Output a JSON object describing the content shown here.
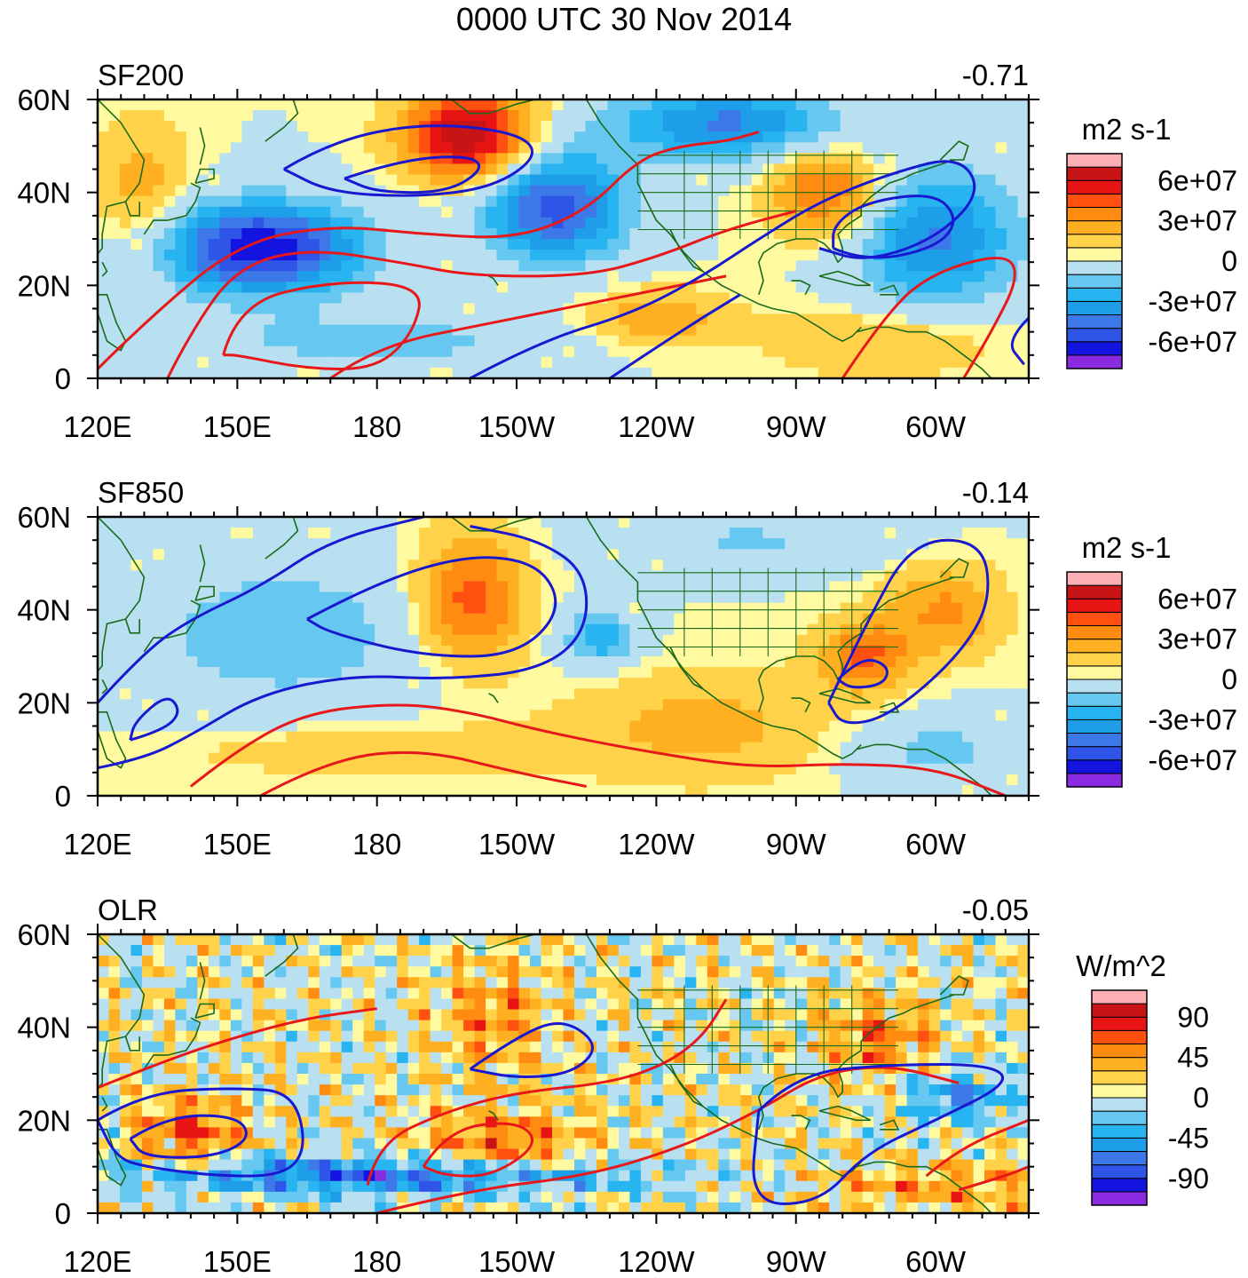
{
  "title": "0000 UTC 30 Nov 2014",
  "chart_data": [
    {
      "type": "heatmap",
      "panel": "SF200",
      "label": "SF200",
      "corr": "-0.71",
      "units": "m2 s-1",
      "x_ticks": [
        "120E",
        "150E",
        "180",
        "150W",
        "120W",
        "90W",
        "60W"
      ],
      "y_ticks": [
        "0",
        "20N",
        "40N",
        "60N"
      ],
      "xlim": [
        120,
        320
      ],
      "ylim": [
        0,
        60
      ],
      "colorbar_labels": [
        "6e+07",
        "3e+07",
        "0",
        "-3e+07",
        "-6e+07"
      ],
      "contours": [
        {
          "color": "blue",
          "note": "closed low centered near 165W 45N"
        },
        {
          "color": "red",
          "note": "large high over western Pacific 150E-180 10N-30N"
        },
        {
          "color": "blue",
          "note": "trough over eastern US / western Atlantic"
        }
      ]
    },
    {
      "type": "heatmap",
      "panel": "SF850",
      "label": "SF850",
      "corr": "-0.14",
      "units": "m2 s-1",
      "x_ticks": [
        "120E",
        "150E",
        "180",
        "150W",
        "120W",
        "90W",
        "60W"
      ],
      "y_ticks": [
        "0",
        "20N",
        "40N",
        "60N"
      ],
      "xlim": [
        120,
        320
      ],
      "ylim": [
        0,
        60
      ],
      "colorbar_labels": [
        "6e+07",
        "3e+07",
        "0",
        "-3e+07",
        "-6e+07"
      ],
      "contours": [
        {
          "color": "blue",
          "note": "broad low 140E-155W 20N-55N"
        },
        {
          "color": "red",
          "note": "weak high along 5N-20N"
        },
        {
          "color": "blue",
          "note": "closed contour over southeast US / western Atlantic"
        }
      ]
    },
    {
      "type": "heatmap",
      "panel": "OLR",
      "label": "OLR",
      "corr": "-0.05",
      "units": "W/m^2",
      "x_ticks": [
        "120E",
        "150E",
        "180",
        "150W",
        "120W",
        "90W",
        "60W"
      ],
      "y_ticks": [
        "0",
        "20N",
        "40N",
        "60N"
      ],
      "xlim": [
        120,
        320
      ],
      "ylim": [
        0,
        60
      ],
      "colorbar_labels": [
        "90",
        "45",
        "0",
        "-45",
        "-90"
      ],
      "contours": [
        {
          "color": "blue",
          "note": "convective region western Pacific 10N-25N"
        },
        {
          "color": "red",
          "note": "suppressed convection band 180-120W 5N-20N"
        }
      ]
    }
  ],
  "colors": {
    "axis": "#000000",
    "coast": "#1a6a1a",
    "contour_pos": "#e8181a",
    "contour_neg": "#1818d0",
    "scale": [
      "#8a2be2",
      "#1414e0",
      "#2e54e8",
      "#3c78e8",
      "#1e9ee8",
      "#28b4f0",
      "#66c8f0",
      "#b8e0f0",
      "#fffaa0",
      "#ffd24a",
      "#ffb020",
      "#ff8c10",
      "#ff5010",
      "#e81414",
      "#c81414",
      "#ffb0b4"
    ]
  }
}
